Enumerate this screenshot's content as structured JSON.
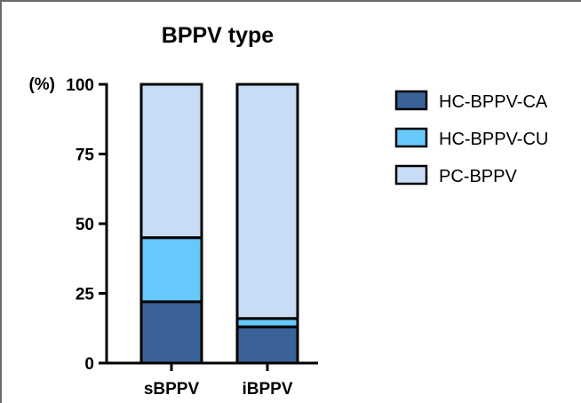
{
  "chart_data": {
    "type": "bar",
    "stacked": true,
    "title": "BPPV type",
    "ylabel": "(%)",
    "xlabel": "",
    "ylim": [
      0,
      100
    ],
    "yticks": [
      0,
      25,
      50,
      75,
      100
    ],
    "categories": [
      "sBPPV",
      "iBPPV"
    ],
    "series": [
      {
        "name": "HC-BPPV-CA",
        "values": [
          22,
          13
        ],
        "color": "#3a6296"
      },
      {
        "name": "HC-BPPV-CU",
        "values": [
          23,
          3
        ],
        "color": "#67c8fb"
      },
      {
        "name": "PC-BPPV",
        "values": [
          55,
          84
        ],
        "color": "#c9dcf5"
      }
    ],
    "legend_position": "right",
    "grid": false,
    "bar_edge_color": "#000000"
  }
}
